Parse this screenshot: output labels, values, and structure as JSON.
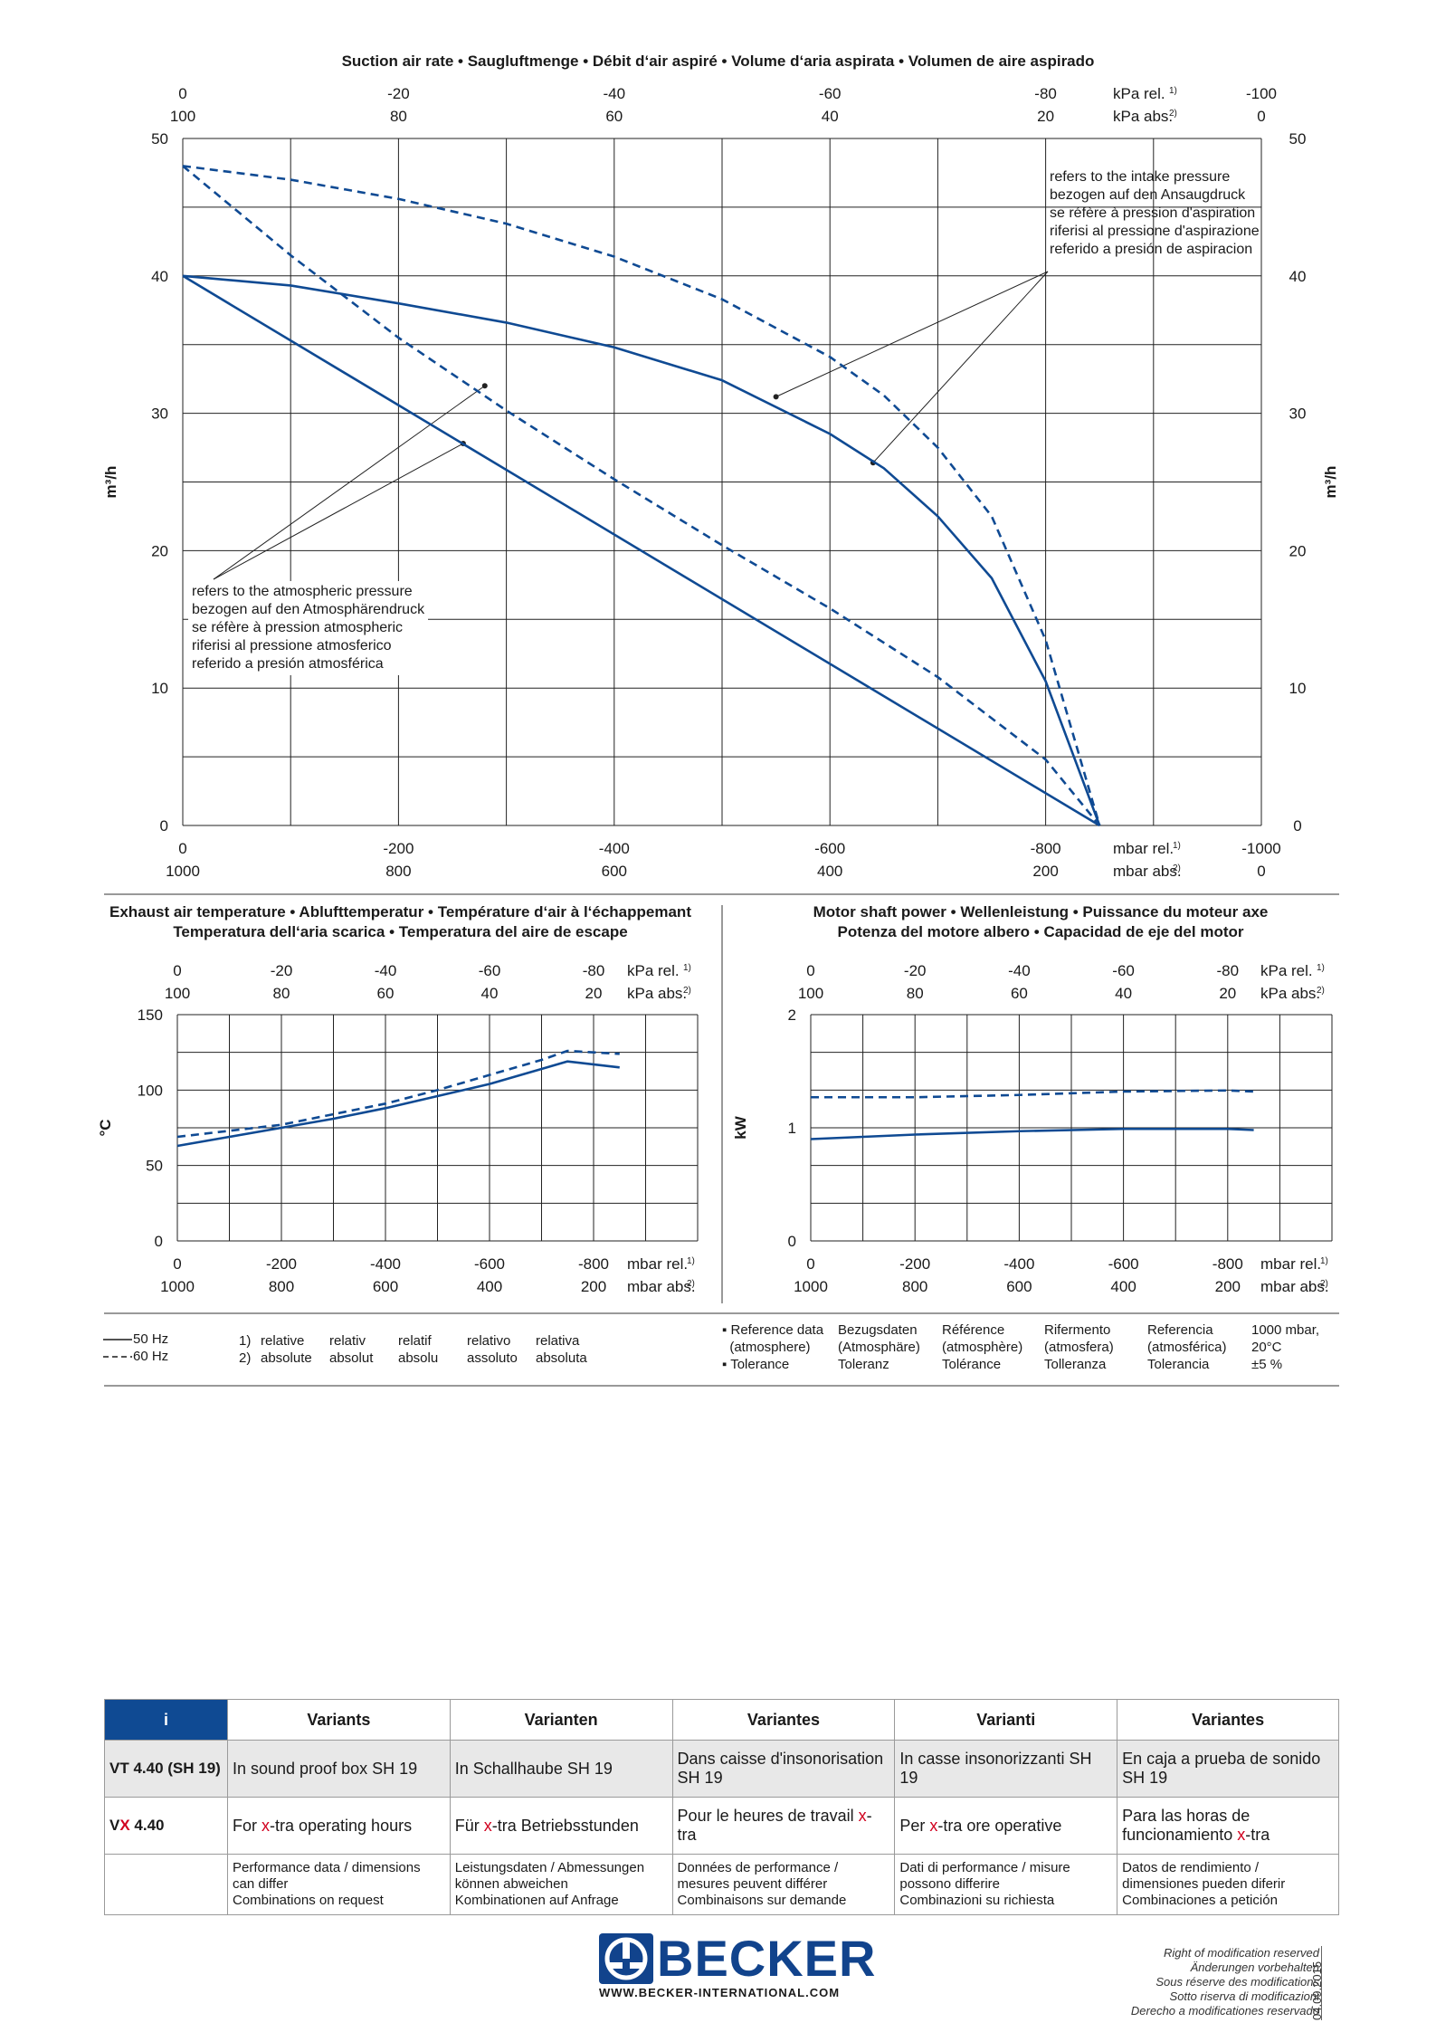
{
  "main_chart": {
    "title": "Suction air rate  •  Saugluftmenge  •  Débit d‘air aspiré  •  Volume d‘aria aspirata  •  Volumen de aire aspirado",
    "ylabel": "m³/h",
    "top_ticks_rel": [
      "0",
      "-20",
      "-40",
      "-60",
      "-80",
      "-100"
    ],
    "top_ticks_abs": [
      "100",
      "80",
      "60",
      "40",
      "20",
      "0"
    ],
    "top_unit_rel": "kPa rel.",
    "top_unit_abs": "kPa abs.",
    "unit_sup_rel": "1)",
    "unit_sup_abs": "2)",
    "bottom_ticks_rel": [
      "0",
      "-200",
      "-400",
      "-600",
      "-800",
      "-1000"
    ],
    "bottom_ticks_abs": [
      "1000",
      "800",
      "600",
      "400",
      "200",
      "0"
    ],
    "bottom_unit_rel": "mbar rel.",
    "bottom_unit_abs": "mbar abs.",
    "y_ticks": [
      "0",
      "10",
      "20",
      "30",
      "40",
      "50"
    ],
    "note_intake": [
      "refers to the intake pressure",
      "bezogen auf den Ansaugdruck",
      "se réfère à pression d'aspiration",
      "riferisi al pressione d'aspirazione",
      "referido a presión de aspiracion"
    ],
    "note_atmos": [
      "refers to the atmospheric pressure",
      "bezogen auf den Atmosphärendruck",
      "se réfère à pression atmospheric",
      "riferisi al pressione atmosferico",
      "referido a presión atmosférica"
    ]
  },
  "temp_chart": {
    "title_line1": "Exhaust air temperature  •  Ablufttemperatur  •  Température d‘air à l‘échappemant",
    "title_line2": "Temperatura dell‘aria scarica  •  Temperatura del aire de escape",
    "ylabel": "°C",
    "y_ticks": [
      "0",
      "50",
      "100",
      "150"
    ],
    "top_ticks_rel": [
      "0",
      "-20",
      "-40",
      "-60",
      "-80"
    ],
    "top_ticks_abs": [
      "100",
      "80",
      "60",
      "40",
      "20"
    ],
    "bottom_ticks_rel": [
      "0",
      "-200",
      "-400",
      "-600",
      "-800"
    ],
    "bottom_ticks_abs": [
      "1000",
      "800",
      "600",
      "400",
      "200"
    ]
  },
  "power_chart": {
    "title_line1": "Motor shaft power  •  Wellenleistung  •  Puissance du moteur axe",
    "title_line2": "Potenza del motore albero  •  Capacidad de eje del motor",
    "ylabel": "kW",
    "y_ticks": [
      "0",
      "1",
      "2"
    ],
    "top_ticks_rel": [
      "0",
      "-20",
      "-40",
      "-60",
      "-80"
    ],
    "top_ticks_abs": [
      "100",
      "80",
      "60",
      "40",
      "20"
    ],
    "bottom_ticks_rel": [
      "0",
      "-200",
      "-400",
      "-600",
      "-800"
    ],
    "bottom_ticks_abs": [
      "1000",
      "800",
      "600",
      "400",
      "200"
    ]
  },
  "chart_data": [
    {
      "type": "line",
      "title": "Suction air rate  •  Saugluftmenge  •  Débit d‘air aspiré  •  Volume d‘aria aspirata  •  Volumen de aire aspirado",
      "xlabel": "mbar rel.",
      "ylabel": "m³/h",
      "xlim": [
        0,
        -1000
      ],
      "ylim": [
        0,
        50
      ],
      "grid": true,
      "series": [
        {
          "name": "50 Hz",
          "style": "solid",
          "x": [
            0,
            -100,
            -200,
            -300,
            -400,
            -500,
            -600,
            -650,
            -700,
            -750,
            -800,
            -850
          ],
          "y": [
            40,
            39.3,
            38,
            36.6,
            34.8,
            32.4,
            28.5,
            26,
            22.5,
            18,
            10.5,
            0
          ]
        },
        {
          "name": "60 Hz",
          "style": "dashed",
          "x": [
            0,
            -100,
            -200,
            -300,
            -400,
            -500,
            -600,
            -650,
            -700,
            -750,
            -800,
            -850
          ],
          "y": [
            48,
            47,
            45.6,
            43.8,
            41.4,
            38.3,
            34.1,
            31.3,
            27.5,
            22.5,
            13.5,
            0
          ]
        },
        {
          "name": "50 Hz",
          "style": "solid",
          "x": [
            0,
            -850
          ],
          "y": [
            40,
            0
          ]
        },
        {
          "name": "60 Hz",
          "style": "dashed",
          "x": [
            0,
            -100,
            -200,
            -300,
            -400,
            -500,
            -600,
            -700,
            -800,
            -850
          ],
          "y": [
            48,
            41.5,
            35.5,
            30.2,
            25.2,
            20.4,
            15.8,
            10.8,
            4.8,
            0
          ]
        }
      ]
    },
    {
      "type": "line",
      "title": "Exhaust air temperature",
      "xlabel": "mbar rel.",
      "ylabel": "°C",
      "xlim": [
        0,
        -1000
      ],
      "ylim": [
        0,
        150
      ],
      "grid": true,
      "series": [
        {
          "name": "50 Hz",
          "style": "solid",
          "x": [
            0,
            -100,
            -200,
            -300,
            -400,
            -500,
            -600,
            -700,
            -750,
            -850
          ],
          "y": [
            63,
            69,
            75,
            81,
            88,
            96,
            104,
            114,
            119,
            115
          ]
        },
        {
          "name": "60 Hz",
          "style": "dashed",
          "x": [
            0,
            -100,
            -200,
            -300,
            -400,
            -500,
            -600,
            -700,
            -750,
            -850
          ],
          "y": [
            69,
            73,
            77,
            84,
            91,
            100,
            110,
            120,
            126,
            124
          ]
        }
      ]
    },
    {
      "type": "line",
      "title": "Motor shaft power",
      "xlabel": "mbar rel.",
      "ylabel": "kW",
      "xlim": [
        0,
        -1000
      ],
      "ylim": [
        0,
        2
      ],
      "grid": true,
      "series": [
        {
          "name": "50 Hz",
          "style": "solid",
          "x": [
            0,
            -200,
            -400,
            -600,
            -800,
            -850
          ],
          "y": [
            0.9,
            0.94,
            0.97,
            0.99,
            0.99,
            0.98
          ]
        },
        {
          "name": "60 Hz",
          "style": "dashed",
          "x": [
            0,
            -200,
            -400,
            -600,
            -800,
            -850
          ],
          "y": [
            1.27,
            1.27,
            1.29,
            1.32,
            1.33,
            1.32
          ]
        }
      ]
    }
  ],
  "legend": {
    "hz50": "50 Hz",
    "hz60": "60 Hz",
    "n1": "1)",
    "n2": "2)",
    "rel": [
      "relative",
      "relativ",
      "relatif",
      "relativo",
      "relativa"
    ],
    "abs": [
      "absolute",
      "absolut",
      "absolu",
      "assoluto",
      "absoluta"
    ]
  },
  "reference": {
    "col1": [
      "▪ Reference data",
      "  (atmosphere)",
      "▪ Tolerance"
    ],
    "col2": [
      "Bezugsdaten",
      "(Atmosphäre)",
      "Toleranz"
    ],
    "col3": [
      "Référence",
      "(atmosphère)",
      "Tolérance"
    ],
    "col4": [
      "Rifermento",
      "(atmosfera)",
      "Tolleranza"
    ],
    "col5": [
      "Referencia",
      "(atmosférica)",
      "Tolerancia"
    ],
    "col6": [
      "1000 mbar,",
      "20°C",
      "±5 %"
    ]
  },
  "variants": {
    "info": "i",
    "headers": [
      "Variants",
      "Varianten",
      "Variantes",
      "Varianti",
      "Variantes"
    ],
    "row1_label": "VT 4.40 (SH 19)",
    "row1": [
      "In sound proof box SH 19",
      "In Schallhaube SH 19",
      "Dans caisse d'insonorisation SH 19",
      "In casse insonorizzanti SH 19",
      "En caja a prueba de sonido SH 19"
    ],
    "row2_label_v": "V",
    "row2_label_x": "X",
    "row2_label_rest": " 4.40",
    "row2_pre": [
      "For ",
      "Für ",
      "Pour le heures de travail ",
      "Per ",
      "Para las horas de funcionamiento "
    ],
    "row2_x": [
      "x",
      "x",
      "x",
      "x",
      "x"
    ],
    "row2_post": [
      "-tra operating hours",
      "-tra Betriebsstunden",
      "-tra",
      "-tra ore operative",
      "-tra"
    ],
    "row3": [
      [
        "Performance data / dimensions",
        "can differ",
        "Combinations on request"
      ],
      [
        "Leistungsdaten / Abmessungen",
        "können abweichen",
        "Kombinationen auf Anfrage"
      ],
      [
        "Données de performance /",
        "mesures peuvent différer",
        "Combinaisons sur demande"
      ],
      [
        "Dati di performance / misure",
        "possono differire",
        "Combinazioni su richiesta"
      ],
      [
        "Datos de rendimiento /",
        "dimensiones pueden diferir",
        "Combinaciones a petición"
      ]
    ]
  },
  "footer": {
    "brand": "BECKER",
    "url": "WWW.BECKER-INTERNATIONAL.COM",
    "rights": [
      "Right of modification reserved",
      "Änderungen vorbehalten",
      "Sous réserve des modifications",
      "Sotto riserva di modificazioni",
      "Derecho a modificationes reservado"
    ],
    "date": "04.09.2015",
    "colors": {
      "brand": "#11438c",
      "curve": "#0f4a93",
      "accent": "#d1001f"
    }
  }
}
